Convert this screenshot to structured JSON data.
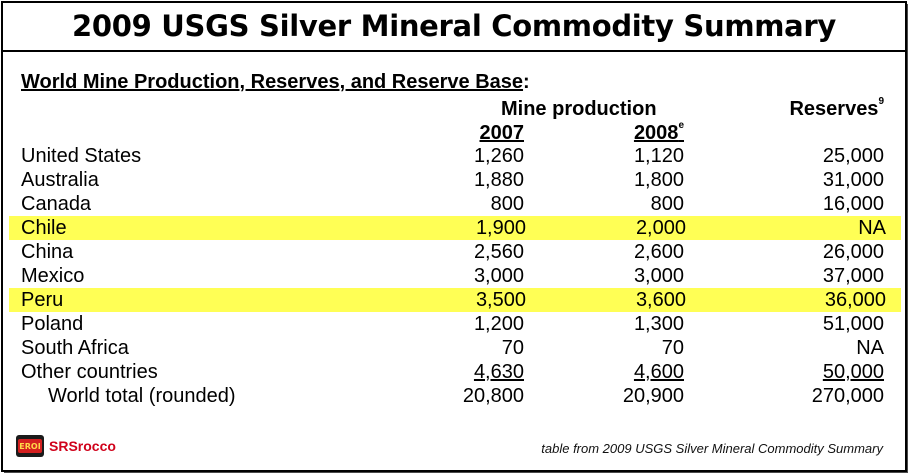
{
  "title": "2009 USGS Silver Mineral Commodity Summary",
  "subtitle": {
    "text": "World Mine Production, Reserves, and Reserve Base",
    "colon": ":"
  },
  "headers": {
    "mine_production": "Mine production",
    "reserves": "Reserves",
    "reserves_note": "9",
    "col_2007": "2007",
    "col_2008": "2008",
    "col_2008_note": "e"
  },
  "rows": [
    {
      "name": "United States",
      "y2007": "1,260",
      "y2008": "1,120",
      "reserves": "25,000",
      "highlight": false
    },
    {
      "name": "Australia",
      "y2007": "1,880",
      "y2008": "1,800",
      "reserves": "31,000",
      "highlight": false
    },
    {
      "name": "Canada",
      "y2007": "800",
      "y2008": "800",
      "reserves": "16,000",
      "highlight": false
    },
    {
      "name": "Chile",
      "y2007": "1,900",
      "y2008": "2,000",
      "reserves": "NA",
      "highlight": true
    },
    {
      "name": "China",
      "y2007": "2,560",
      "y2008": "2,600",
      "reserves": "26,000",
      "highlight": false
    },
    {
      "name": "Mexico",
      "y2007": "3,000",
      "y2008": "3,000",
      "reserves": "37,000",
      "highlight": false
    },
    {
      "name": "Peru",
      "y2007": "3,500",
      "y2008": "3,600",
      "reserves": "36,000",
      "highlight": true
    },
    {
      "name": "Poland",
      "y2007": "1,200",
      "y2008": "1,300",
      "reserves": "51,000",
      "highlight": false
    },
    {
      "name": "South Africa",
      "y2007": "70",
      "y2008": "70",
      "reserves": "NA",
      "highlight": false
    },
    {
      "name": "Other countries",
      "y2007": "4,630",
      "y2008": "4,600",
      "reserves": "50,000",
      "highlight": false
    }
  ],
  "total": {
    "name": "World total (rounded)",
    "y2007": "20,800",
    "y2008": "20,900",
    "reserves": "270,000"
  },
  "highlight_color": "#ffff55",
  "footer": {
    "logo_text": "EROI",
    "brand": "SRSrocco",
    "source": "table from 2009 USGS Silver Mineral Commodity Summary",
    "brand_color": "#d0021b"
  }
}
